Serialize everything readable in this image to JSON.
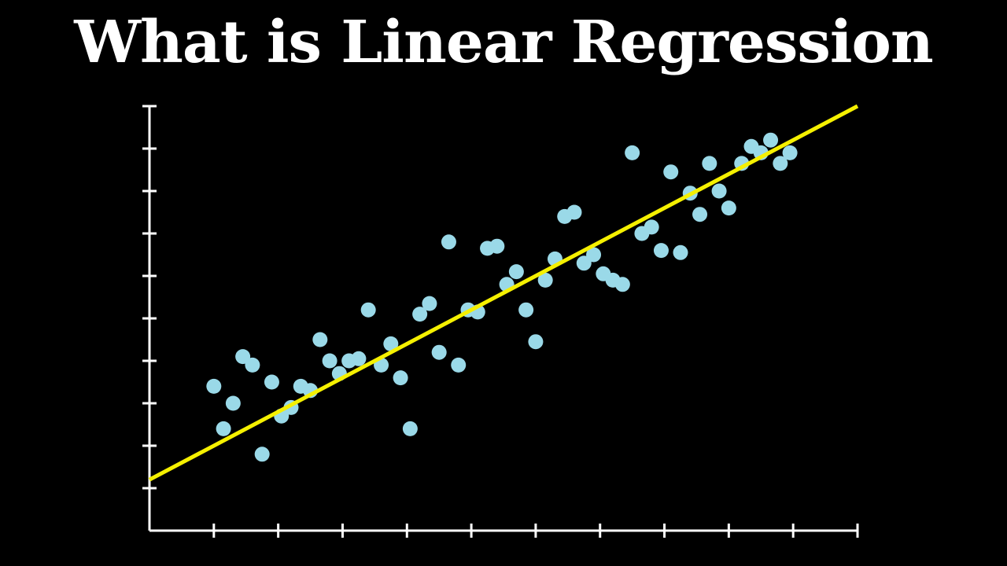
{
  "title": "What is Linear Regression",
  "colors": {
    "background": "#000000",
    "axes": "#ffffff",
    "points": "#9ad9e8",
    "regression_line": "#f5f000",
    "title": "#ffffff"
  },
  "chart_data": {
    "type": "scatter",
    "title": "What is Linear Regression",
    "xlabel": "",
    "ylabel": "",
    "x_tick_count": 11,
    "y_tick_count": 10,
    "tick_labels_shown": false,
    "grid": false,
    "legend": null,
    "xlim": [
      0,
      11
    ],
    "ylim": [
      0,
      10
    ],
    "regression_line": {
      "x0": 0,
      "y0": 1.2,
      "x1": 11,
      "y1": 10.0
    },
    "points": [
      {
        "x": 1.0,
        "y": 3.4
      },
      {
        "x": 1.15,
        "y": 2.4
      },
      {
        "x": 1.3,
        "y": 3.0
      },
      {
        "x": 1.45,
        "y": 4.1
      },
      {
        "x": 1.6,
        "y": 3.9
      },
      {
        "x": 1.75,
        "y": 1.8
      },
      {
        "x": 1.9,
        "y": 3.5
      },
      {
        "x": 2.05,
        "y": 2.7
      },
      {
        "x": 2.2,
        "y": 2.9
      },
      {
        "x": 2.35,
        "y": 3.4
      },
      {
        "x": 2.5,
        "y": 3.3
      },
      {
        "x": 2.65,
        "y": 4.5
      },
      {
        "x": 2.8,
        "y": 4.0
      },
      {
        "x": 2.95,
        "y": 3.7
      },
      {
        "x": 3.1,
        "y": 4.0
      },
      {
        "x": 3.25,
        "y": 4.05
      },
      {
        "x": 3.4,
        "y": 5.2
      },
      {
        "x": 3.6,
        "y": 3.9
      },
      {
        "x": 3.75,
        "y": 4.4
      },
      {
        "x": 3.9,
        "y": 3.6
      },
      {
        "x": 4.05,
        "y": 2.4
      },
      {
        "x": 4.2,
        "y": 5.1
      },
      {
        "x": 4.35,
        "y": 5.35
      },
      {
        "x": 4.5,
        "y": 4.2
      },
      {
        "x": 4.65,
        "y": 6.8
      },
      {
        "x": 4.8,
        "y": 3.9
      },
      {
        "x": 4.95,
        "y": 5.2
      },
      {
        "x": 5.1,
        "y": 5.15
      },
      {
        "x": 5.25,
        "y": 6.65
      },
      {
        "x": 5.4,
        "y": 6.7
      },
      {
        "x": 5.55,
        "y": 5.8
      },
      {
        "x": 5.7,
        "y": 6.1
      },
      {
        "x": 5.85,
        "y": 5.2
      },
      {
        "x": 6.0,
        "y": 4.45
      },
      {
        "x": 6.15,
        "y": 5.9
      },
      {
        "x": 6.3,
        "y": 6.4
      },
      {
        "x": 6.45,
        "y": 7.4
      },
      {
        "x": 6.6,
        "y": 7.5
      },
      {
        "x": 6.75,
        "y": 6.3
      },
      {
        "x": 6.9,
        "y": 6.5
      },
      {
        "x": 7.05,
        "y": 6.05
      },
      {
        "x": 7.2,
        "y": 5.9
      },
      {
        "x": 7.35,
        "y": 5.8
      },
      {
        "x": 7.5,
        "y": 8.9
      },
      {
        "x": 7.65,
        "y": 7.0
      },
      {
        "x": 7.8,
        "y": 7.15
      },
      {
        "x": 7.95,
        "y": 6.6
      },
      {
        "x": 8.1,
        "y": 8.45
      },
      {
        "x": 8.25,
        "y": 6.55
      },
      {
        "x": 8.4,
        "y": 7.95
      },
      {
        "x": 8.55,
        "y": 7.45
      },
      {
        "x": 8.7,
        "y": 8.65
      },
      {
        "x": 8.85,
        "y": 8.0
      },
      {
        "x": 9.0,
        "y": 7.6
      },
      {
        "x": 9.2,
        "y": 8.65
      },
      {
        "x": 9.35,
        "y": 9.05
      },
      {
        "x": 9.5,
        "y": 8.9
      },
      {
        "x": 9.65,
        "y": 9.2
      },
      {
        "x": 9.8,
        "y": 8.65
      },
      {
        "x": 9.95,
        "y": 8.9
      }
    ]
  }
}
